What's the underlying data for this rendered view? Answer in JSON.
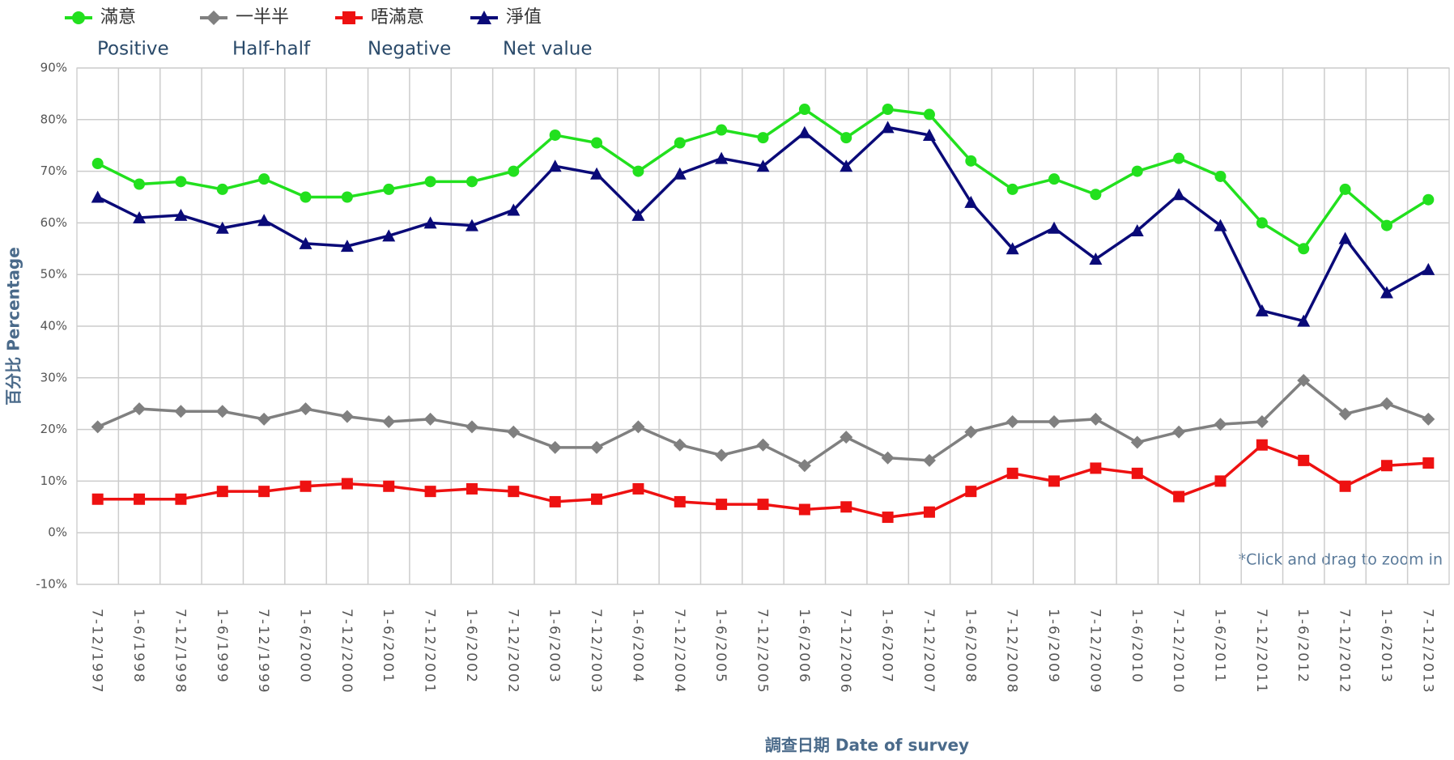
{
  "chart_data": {
    "type": "line",
    "categories": [
      "7-12/1997",
      "1-6/1998",
      "7-12/1998",
      "1-6/1999",
      "7-12/1999",
      "1-6/2000",
      "7-12/2000",
      "1-6/2001",
      "7-12/2001",
      "1-6/2002",
      "7-12/2002",
      "1-6/2003",
      "7-12/2003",
      "1-6/2004",
      "7-12/2004",
      "1-6/2005",
      "7-12/2005",
      "1-6/2006",
      "7-12/2006",
      "1-6/2007",
      "7-12/2007",
      "1-6/2008",
      "7-12/2008",
      "1-6/2009",
      "7-12/2009",
      "1-6/2010",
      "7-12/2010",
      "1-6/2011",
      "7-12/2011",
      "1-6/2012",
      "7-12/2012",
      "1-6/2013",
      "7-12/2013"
    ],
    "series": [
      {
        "name": "滿意",
        "name_en": "Positive",
        "color": "#22e01e",
        "marker": "circle",
        "values": [
          71.5,
          67.5,
          68,
          66.5,
          68.5,
          65,
          65,
          66.5,
          68,
          68,
          70,
          77,
          75.5,
          70,
          75.5,
          78,
          76.5,
          82,
          76.5,
          82,
          81,
          72,
          66.5,
          68.5,
          65.5,
          70,
          72.5,
          69,
          60,
          55,
          66.5,
          59.5,
          64.5
        ]
      },
      {
        "name": "一半半",
        "name_en": "Half-half",
        "color": "#808080",
        "marker": "diamond",
        "values": [
          20.5,
          24,
          23.5,
          23.5,
          22,
          24,
          22.5,
          21.5,
          22,
          20.5,
          19.5,
          16.5,
          16.5,
          20.5,
          17,
          15,
          17,
          13,
          18.5,
          14.5,
          14,
          19.5,
          21.5,
          21.5,
          22,
          17.5,
          19.5,
          21,
          21.5,
          29.5,
          23,
          25,
          22
        ]
      },
      {
        "name": "唔滿意",
        "name_en": "Negative",
        "color": "#ee1111",
        "marker": "square",
        "values": [
          6.5,
          6.5,
          6.5,
          8,
          8,
          9,
          9.5,
          9,
          8,
          8.5,
          8,
          6,
          6.5,
          8.5,
          6,
          5.5,
          5.5,
          4.5,
          5,
          3,
          4,
          8,
          11.5,
          10,
          12.5,
          11.5,
          7,
          10,
          17,
          14,
          9,
          13,
          13.5
        ]
      },
      {
        "name": "淨值",
        "name_en": "Net value",
        "color": "#0a0a78",
        "marker": "triangle",
        "values": [
          65,
          61,
          61.5,
          59,
          60.5,
          56,
          55.5,
          57.5,
          60,
          59.5,
          62.5,
          71,
          69.5,
          61.5,
          69.5,
          72.5,
          71,
          77.5,
          71,
          78.5,
          77,
          64,
          55,
          59,
          53,
          58.5,
          65.5,
          59.5,
          43,
          41,
          57,
          46.5,
          51
        ]
      }
    ],
    "ylim": [
      -10,
      90
    ],
    "yticks": [
      {
        "value": -10,
        "label": "-10%"
      },
      {
        "value": 0,
        "label": "0%"
      },
      {
        "value": 10,
        "label": "10%"
      },
      {
        "value": 20,
        "label": "20%"
      },
      {
        "value": 30,
        "label": "30%"
      },
      {
        "value": 40,
        "label": "40%"
      },
      {
        "value": 50,
        "label": "50%"
      },
      {
        "value": 60,
        "label": "60%"
      },
      {
        "value": 70,
        "label": "70%"
      },
      {
        "value": 80,
        "label": "80%"
      },
      {
        "value": 90,
        "label": "90%"
      }
    ],
    "grid": true,
    "y_label": "百分比 Percentage",
    "x_label": "調查日期 Date of survey",
    "annotation": "*Click and drag to zoom in"
  }
}
